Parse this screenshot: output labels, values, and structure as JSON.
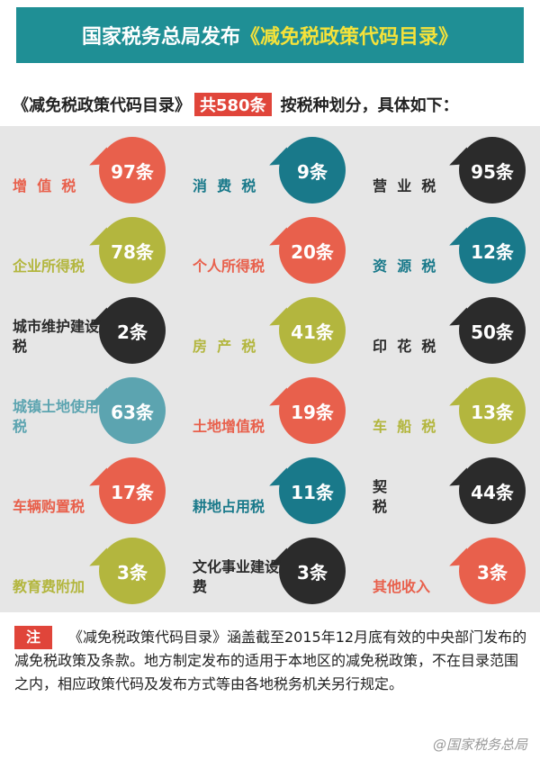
{
  "header": {
    "title_prefix": "国家税务总局发布",
    "title_highlight": "《减免税政策代码目录》"
  },
  "summary": {
    "before": "《减免税政策代码目录》",
    "highlight": "共580条",
    "after": "按税种划分，具体如下："
  },
  "items": [
    {
      "label": "增值税",
      "count": "97条",
      "color": "#e8604c"
    },
    {
      "label": "消费税",
      "count": "9条",
      "color": "#19798a"
    },
    {
      "label": "营业税",
      "count": "95条",
      "color": "#2b2b2b"
    },
    {
      "label": "企业所得税",
      "count": "78条",
      "color": "#b3b63e"
    },
    {
      "label": "个人所得税",
      "count": "20条",
      "color": "#e8604c"
    },
    {
      "label": "资源税",
      "count": "12条",
      "color": "#19798a"
    },
    {
      "label": "城市维护建设税",
      "count": "2条",
      "color": "#2b2b2b"
    },
    {
      "label": "房产税",
      "count": "41条",
      "color": "#b3b63e"
    },
    {
      "label": "印花税",
      "count": "50条",
      "color": "#2b2b2b"
    },
    {
      "label": "城镇土地使用税",
      "count": "63条",
      "color": "#5ca4b0"
    },
    {
      "label": "土地增值税",
      "count": "19条",
      "color": "#e8604c"
    },
    {
      "label": "车船税",
      "count": "13条",
      "color": "#b3b63e"
    },
    {
      "label": "车辆购置税",
      "count": "17条",
      "color": "#e8604c"
    },
    {
      "label": "耕地占用税",
      "count": "11条",
      "color": "#19798a"
    },
    {
      "label": "契税",
      "count": "44条",
      "color": "#2b2b2b"
    },
    {
      "label": "教育费附加",
      "count": "3条",
      "color": "#b3b63e"
    },
    {
      "label": "文化事业建设费",
      "count": "3条",
      "color": "#2b2b2b"
    },
    {
      "label": "其他收入",
      "count": "3条",
      "color": "#e8604c"
    }
  ],
  "note": {
    "tag": "注",
    "text": "《减免税政策代码目录》涵盖截至2015年12月底有效的中央部门发布的减免税政策及条款。地方制定发布的适用于本地区的减免税政策，不在目录范围之内，相应政策代码及发布方式等由各地税务机关另行规定。"
  },
  "footer": "@国家税务总局"
}
